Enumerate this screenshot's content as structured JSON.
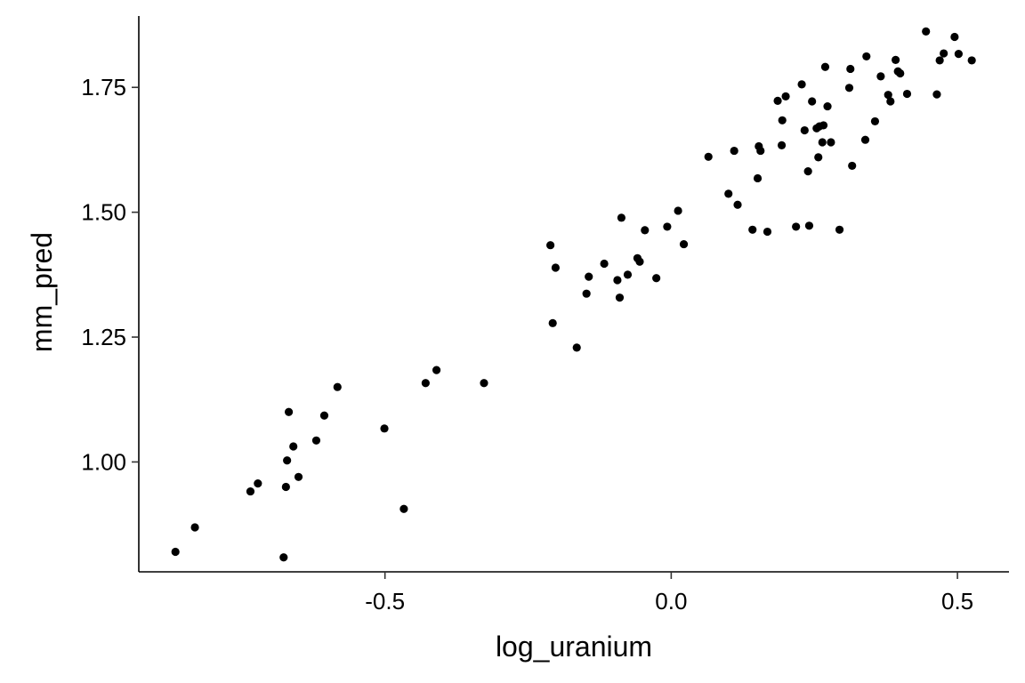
{
  "chart_data": {
    "type": "scatter",
    "title": "",
    "xlabel": "log_uranium",
    "ylabel": "mm_pred",
    "xlim": [
      -0.93,
      0.59
    ],
    "ylim": [
      0.78,
      1.9
    ],
    "xticks": [
      -0.5,
      0.0,
      0.5
    ],
    "xtick_labels": [
      "-0.5",
      "0.0",
      "0.5"
    ],
    "yticks": [
      1.0,
      1.25,
      1.5,
      1.75
    ],
    "ytick_labels": [
      "1.00",
      "1.25",
      "1.50",
      "1.75"
    ],
    "grid": false,
    "legend": "none",
    "point_color": "#000000",
    "series": [
      {
        "x": [
          -0.866,
          -0.832,
          -0.735,
          -0.722,
          -0.677,
          -0.673,
          -0.671,
          -0.668,
          -0.66,
          -0.651,
          -0.62,
          -0.606,
          -0.583,
          -0.501,
          -0.467,
          -0.429,
          -0.41,
          -0.327,
          -0.211,
          -0.207,
          -0.202,
          -0.165,
          -0.148,
          -0.144,
          -0.117,
          -0.094,
          -0.09,
          -0.087,
          -0.076,
          -0.059,
          -0.055,
          -0.046,
          -0.026,
          -0.007,
          0.012,
          0.022,
          0.065,
          0.1,
          0.11,
          0.116,
          0.142,
          0.151,
          0.153,
          0.156,
          0.168,
          0.186,
          0.193,
          0.194,
          0.2,
          0.218,
          0.228,
          0.233,
          0.239,
          0.241,
          0.246,
          0.254,
          0.257,
          0.259,
          0.264,
          0.266,
          0.269,
          0.273,
          0.279,
          0.294,
          0.311,
          0.313,
          0.316,
          0.339,
          0.341,
          0.356,
          0.366,
          0.379,
          0.383,
          0.392,
          0.396,
          0.4,
          0.412,
          0.445,
          0.464,
          0.469,
          0.476,
          0.495,
          0.502,
          0.525
        ],
        "y": [
          0.82,
          0.869,
          0.941,
          0.957,
          0.809,
          0.95,
          1.003,
          1.1,
          1.031,
          0.97,
          1.043,
          1.093,
          1.15,
          1.067,
          0.906,
          1.158,
          1.184,
          1.158,
          1.434,
          1.278,
          1.389,
          1.229,
          1.337,
          1.371,
          1.397,
          1.364,
          1.329,
          1.489,
          1.375,
          1.408,
          1.401,
          1.464,
          1.368,
          1.471,
          1.503,
          1.436,
          1.611,
          1.537,
          1.623,
          1.515,
          1.465,
          1.568,
          1.632,
          1.623,
          1.461,
          1.723,
          1.634,
          1.684,
          1.732,
          1.471,
          1.756,
          1.664,
          1.582,
          1.473,
          1.722,
          1.668,
          1.61,
          1.672,
          1.64,
          1.674,
          1.791,
          1.712,
          1.64,
          1.465,
          1.749,
          1.787,
          1.593,
          1.645,
          1.812,
          1.682,
          1.772,
          1.735,
          1.722,
          1.805,
          1.782,
          1.778,
          1.737,
          1.862,
          1.736,
          1.804,
          1.818,
          1.851,
          1.817,
          1.804
        ]
      }
    ]
  }
}
